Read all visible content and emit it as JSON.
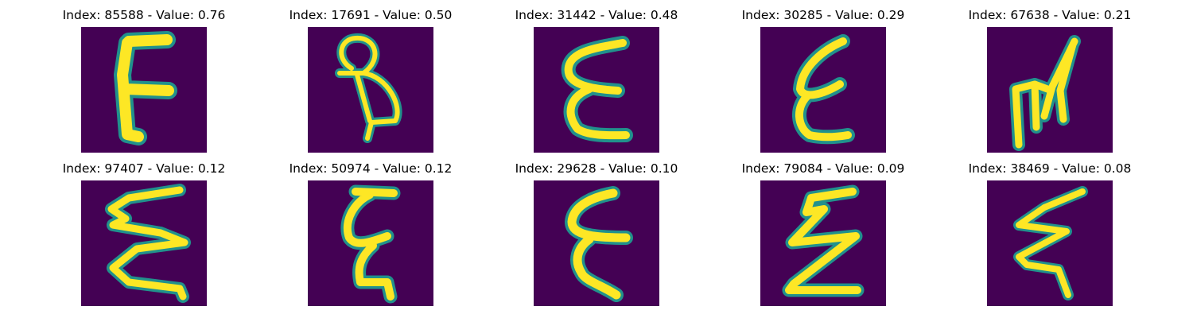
{
  "colors": {
    "background": "#440154",
    "mid": "#21918c",
    "stroke": "#fde725"
  },
  "panels": [
    {
      "title": "Index: 85588 - Value: 0.76",
      "glyph": "F-shaped digit"
    },
    {
      "title": "Index: 17691 - Value: 0.50",
      "glyph": "looped 8-like digit"
    },
    {
      "title": "Index: 31442 - Value: 0.48",
      "glyph": "epsilon-shaped digit"
    },
    {
      "title": "Index: 30285 - Value: 0.29",
      "glyph": "epsilon-shaped digit"
    },
    {
      "title": "Index: 67638 - Value: 0.21",
      "glyph": "M-shaped digit"
    },
    {
      "title": "Index: 97407 - Value: 0.12",
      "glyph": "zigzag E-shaped digit"
    },
    {
      "title": "Index: 50974 - Value: 0.12",
      "glyph": "epsilon-shaped digit"
    },
    {
      "title": "Index: 29628 - Value: 0.10",
      "glyph": "epsilon-shaped digit"
    },
    {
      "title": "Index: 79084 - Value: 0.09",
      "glyph": "zigzag Z-shaped digit"
    },
    {
      "title": "Index: 38469 - Value: 0.08",
      "glyph": "zigzag Z-shaped digit"
    }
  ]
}
